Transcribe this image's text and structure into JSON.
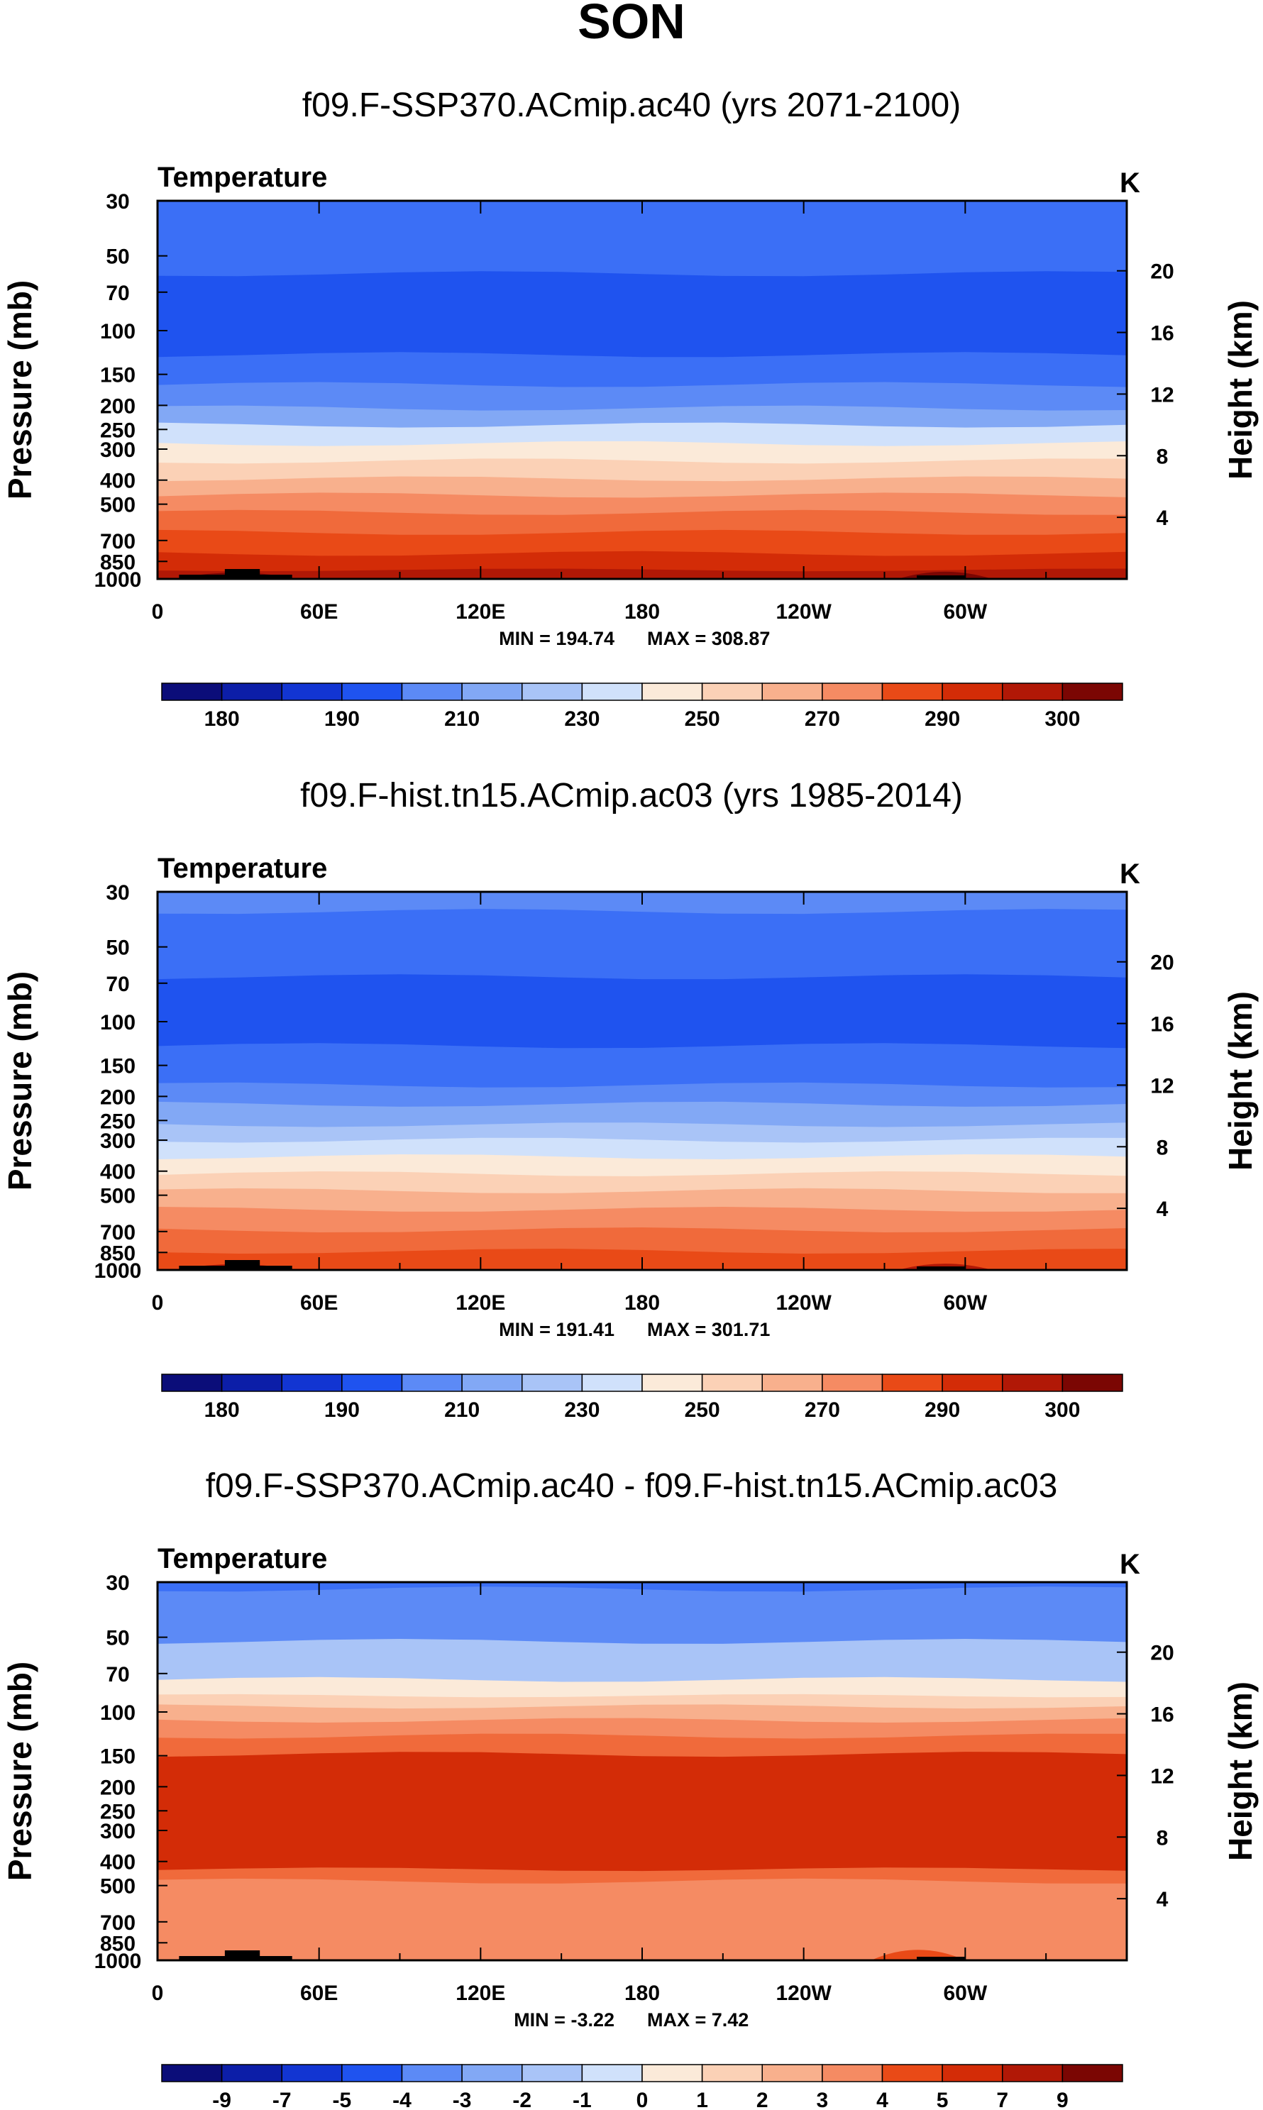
{
  "figure": {
    "season_title": "SON"
  },
  "colors": {
    "ramp": [
      "#0b0d79",
      "#0c1ea8",
      "#1235d2",
      "#1f53ef",
      "#3b6ff6",
      "#5c8af6",
      "#82a8f5",
      "#a9c4f7",
      "#d0e1fb",
      "#fbead9",
      "#fbd1b6",
      "#f8b08d",
      "#f58b63",
      "#f06a3b",
      "#e94a17",
      "#d32c07",
      "#b11806",
      "#7b0603"
    ],
    "ramp_name": "BlueWhiteOrangeRed"
  },
  "chart_data": [
    {
      "type": "heatmap",
      "title": "f09.F-SSP370.ACmip.ac40 (yrs 2071-2100)",
      "variable": "Temperature",
      "units": "K",
      "ylabel": "Pressure (mb)",
      "ylabel_right": "Height (km)",
      "x_ticks": [
        "0",
        "60E",
        "120E",
        "180",
        "120W",
        "60W"
      ],
      "x_tick_values": [
        0,
        60,
        120,
        180,
        240,
        300
      ],
      "xlim": [
        0,
        360
      ],
      "pressure_ticks": [
        "30",
        "50",
        "70",
        "100",
        "150",
        "200",
        "250",
        "300",
        "400",
        "500",
        "700",
        "850",
        "1000"
      ],
      "pressure_tick_values": [
        30,
        50,
        70,
        100,
        150,
        200,
        250,
        300,
        400,
        500,
        700,
        850,
        1000
      ],
      "ylim": [
        1000,
        30
      ],
      "height_ticks": [
        "20",
        "16",
        "12",
        "8",
        "4"
      ],
      "height_tick_values": [
        20,
        16,
        12,
        8,
        4
      ],
      "min_label": "MIN = 194.74",
      "max_label": "MAX = 308.87",
      "levels": [
        "180",
        "190",
        "210",
        "230",
        "250",
        "270",
        "290",
        "300"
      ],
      "bands": [
        {
          "p_top": 30,
          "p_bot": 59,
          "color_index": 4
        },
        {
          "p_top": 59,
          "p_bot": 125,
          "color_index": 3
        },
        {
          "p_top": 125,
          "p_bot": 165,
          "color_index": 4
        },
        {
          "p_top": 165,
          "p_bot": 205,
          "color_index": 5
        },
        {
          "p_top": 205,
          "p_bot": 240,
          "color_index": 6
        },
        {
          "p_top": 240,
          "p_bot": 285,
          "color_index": 8
        },
        {
          "p_top": 285,
          "p_bot": 335,
          "color_index": 9
        },
        {
          "p_top": 335,
          "p_bot": 395,
          "color_index": 10
        },
        {
          "p_top": 395,
          "p_bot": 460,
          "color_index": 11
        },
        {
          "p_top": 460,
          "p_bot": 540,
          "color_index": 12
        },
        {
          "p_top": 540,
          "p_bot": 650,
          "color_index": 13
        },
        {
          "p_top": 650,
          "p_bot": 790,
          "color_index": 14
        },
        {
          "p_top": 790,
          "p_bot": 920,
          "color_index": 15
        },
        {
          "p_top": 920,
          "p_bot": 1000,
          "color_index": 16
        }
      ],
      "terrain": [
        {
          "lon_start": 6,
          "lon_end": 52,
          "p_top": 950,
          "color_index": 17
        },
        {
          "lon_start": 275,
          "lon_end": 310,
          "p_top": 935,
          "color_index": 17
        }
      ]
    },
    {
      "type": "heatmap",
      "title": "f09.F-hist.tn15.ACmip.ac03 (yrs 1985-2014)",
      "variable": "Temperature",
      "units": "K",
      "ylabel": "Pressure (mb)",
      "ylabel_right": "Height (km)",
      "x_ticks": [
        "0",
        "60E",
        "120E",
        "180",
        "120W",
        "60W"
      ],
      "x_tick_values": [
        0,
        60,
        120,
        180,
        240,
        300
      ],
      "xlim": [
        0,
        360
      ],
      "pressure_ticks": [
        "30",
        "50",
        "70",
        "100",
        "150",
        "200",
        "250",
        "300",
        "400",
        "500",
        "700",
        "850",
        "1000"
      ],
      "pressure_tick_values": [
        30,
        50,
        70,
        100,
        150,
        200,
        250,
        300,
        400,
        500,
        700,
        850,
        1000
      ],
      "ylim": [
        1000,
        30
      ],
      "height_ticks": [
        "20",
        "16",
        "12",
        "8",
        "4"
      ],
      "height_tick_values": [
        20,
        16,
        12,
        8,
        4
      ],
      "min_label": "MIN = 191.41",
      "max_label": "MAX = 301.71",
      "levels": [
        "180",
        "190",
        "210",
        "230",
        "250",
        "270",
        "290",
        "300"
      ],
      "bands": [
        {
          "p_top": 30,
          "p_bot": 36,
          "color_index": 5
        },
        {
          "p_top": 36,
          "p_bot": 66,
          "color_index": 4
        },
        {
          "p_top": 66,
          "p_bot": 125,
          "color_index": 3
        },
        {
          "p_top": 125,
          "p_bot": 180,
          "color_index": 4
        },
        {
          "p_top": 180,
          "p_bot": 215,
          "color_index": 5
        },
        {
          "p_top": 215,
          "p_bot": 260,
          "color_index": 6
        },
        {
          "p_top": 260,
          "p_bot": 300,
          "color_index": 7
        },
        {
          "p_top": 300,
          "p_bot": 350,
          "color_index": 8
        },
        {
          "p_top": 350,
          "p_bot": 410,
          "color_index": 9
        },
        {
          "p_top": 410,
          "p_bot": 480,
          "color_index": 10
        },
        {
          "p_top": 480,
          "p_bot": 570,
          "color_index": 11
        },
        {
          "p_top": 570,
          "p_bot": 690,
          "color_index": 12
        },
        {
          "p_top": 690,
          "p_bot": 840,
          "color_index": 13
        },
        {
          "p_top": 840,
          "p_bot": 1000,
          "color_index": 14
        }
      ],
      "terrain": [
        {
          "lon_start": 6,
          "lon_end": 52,
          "p_top": 960,
          "color_index": 16
        },
        {
          "lon_start": 275,
          "lon_end": 310,
          "p_top": 950,
          "color_index": 16
        }
      ]
    },
    {
      "type": "heatmap",
      "title": "f09.F-SSP370.ACmip.ac40 - f09.F-hist.tn15.ACmip.ac03",
      "variable": "Temperature",
      "units": "K",
      "ylabel": "Pressure (mb)",
      "ylabel_right": "Height (km)",
      "x_ticks": [
        "0",
        "60E",
        "120E",
        "180",
        "120W",
        "60W"
      ],
      "x_tick_values": [
        0,
        60,
        120,
        180,
        240,
        300
      ],
      "xlim": [
        0,
        360
      ],
      "pressure_ticks": [
        "30",
        "50",
        "70",
        "100",
        "150",
        "200",
        "250",
        "300",
        "400",
        "500",
        "700",
        "850",
        "1000"
      ],
      "pressure_tick_values": [
        30,
        50,
        70,
        100,
        150,
        200,
        250,
        300,
        400,
        500,
        700,
        850,
        1000
      ],
      "ylim": [
        1000,
        30
      ],
      "height_ticks": [
        "20",
        "16",
        "12",
        "8",
        "4"
      ],
      "height_tick_values": [
        20,
        16,
        12,
        8,
        4
      ],
      "min_label": "MIN =  -3.22",
      "max_label": "MAX =   7.42",
      "levels": [
        "-9",
        "-7",
        "-5",
        "-4",
        "-3",
        "-2",
        "-1",
        "0",
        "1",
        "2",
        "3",
        "4",
        "5",
        "7",
        "9"
      ],
      "bands": [
        {
          "p_top": 30,
          "p_bot": 32,
          "color_index": 4
        },
        {
          "p_top": 32,
          "p_bot": 52,
          "color_index": 5
        },
        {
          "p_top": 52,
          "p_bot": 74,
          "color_index": 7
        },
        {
          "p_top": 74,
          "p_bot": 86,
          "color_index": 9
        },
        {
          "p_top": 86,
          "p_bot": 95,
          "color_index": 10
        },
        {
          "p_top": 95,
          "p_bot": 108,
          "color_index": 11
        },
        {
          "p_top": 108,
          "p_bot": 125,
          "color_index": 12
        },
        {
          "p_top": 125,
          "p_bot": 148,
          "color_index": 13
        },
        {
          "p_top": 148,
          "p_bot": 430,
          "color_index": 15
        },
        {
          "p_top": 430,
          "p_bot": 480,
          "color_index": 13
        },
        {
          "p_top": 480,
          "p_bot": 1000,
          "color_index": 12
        }
      ],
      "terrain": [
        {
          "lon_start": 265,
          "lon_end": 300,
          "p_top": 880,
          "color_index": 14
        },
        {
          "lon_start": 6,
          "lon_end": 52,
          "p_top": 970,
          "color_index": 12
        }
      ]
    }
  ]
}
